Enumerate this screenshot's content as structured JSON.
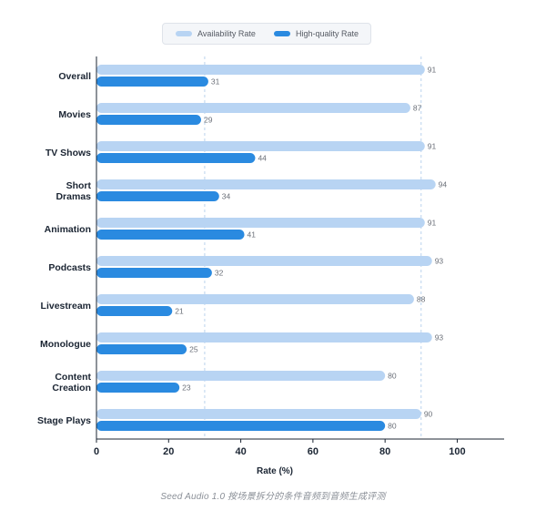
{
  "chart_data": {
    "type": "bar",
    "orientation": "horizontal",
    "categories": [
      "Overall",
      "Movies",
      "TV Shows",
      "Short Dramas",
      "Animation",
      "Podcasts",
      "Livestream",
      "Monologue",
      "Content Creation",
      "Stage Plays"
    ],
    "category_lines": [
      [
        "Overall"
      ],
      [
        "Movies"
      ],
      [
        "TV Shows"
      ],
      [
        "Short",
        "Dramas"
      ],
      [
        "Animation"
      ],
      [
        "Podcasts"
      ],
      [
        "Livestream"
      ],
      [
        "Monologue"
      ],
      [
        "Content",
        "Creation"
      ],
      [
        "Stage Plays"
      ]
    ],
    "series": [
      {
        "name": "Availability Rate",
        "color": "#b8d4f3",
        "values": [
          91,
          87,
          91,
          94,
          91,
          93,
          88,
          93,
          80,
          90
        ]
      },
      {
        "name": "High-quality Rate",
        "color": "#2a8ae0",
        "values": [
          31,
          29,
          44,
          34,
          41,
          32,
          21,
          25,
          23,
          80
        ]
      }
    ],
    "xlabel": "Rate (%)",
    "xticks": [
      0,
      20,
      40,
      60,
      80,
      100
    ],
    "xlim": [
      0,
      113
    ],
    "reference_lines": [
      30,
      90
    ],
    "legend": "top-center",
    "grid": false
  },
  "caption": "Seed Audio 1.0 按场景拆分的条件音频到音频生成评测"
}
